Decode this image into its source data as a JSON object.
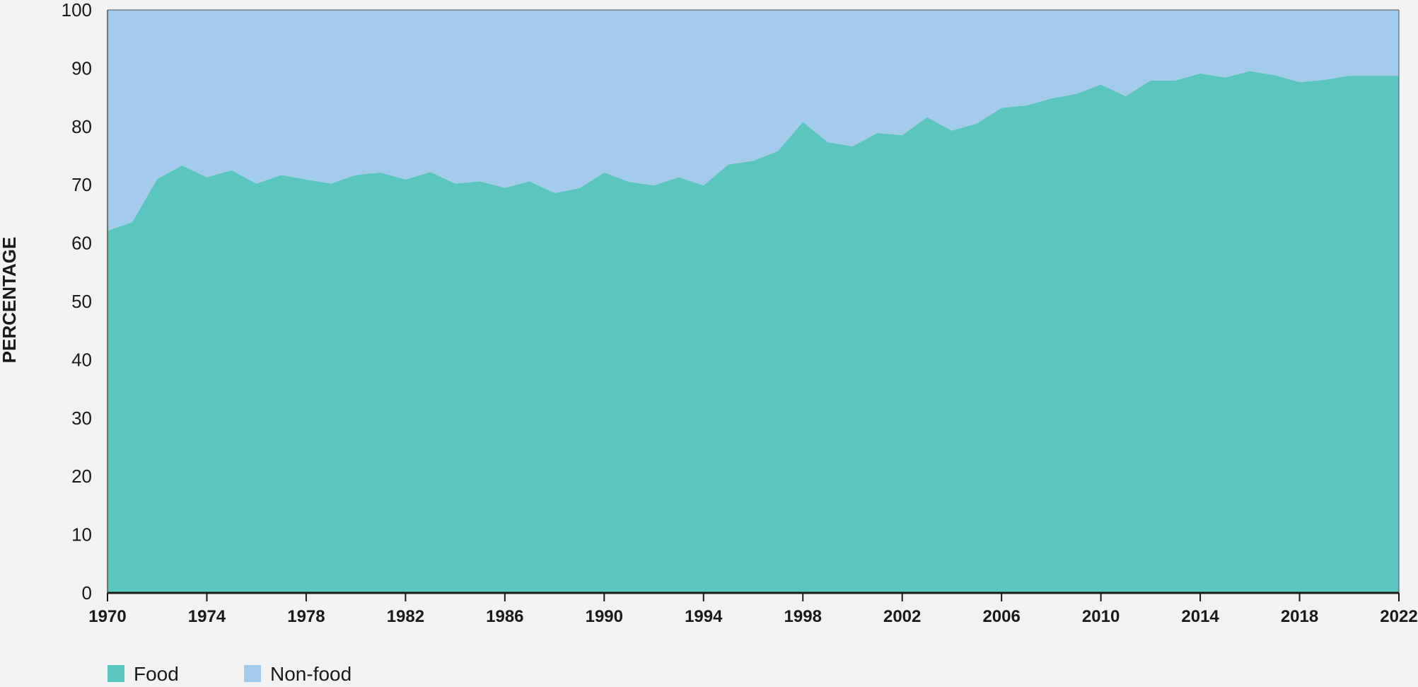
{
  "chart_data": {
    "type": "area",
    "stacked": true,
    "percent_stacked": true,
    "ylabel": "PERCENTAGE",
    "xlabel": "",
    "ylim": [
      0,
      100
    ],
    "yticks": [
      "0",
      "10",
      "20",
      "30",
      "40",
      "50",
      "60",
      "70",
      "80",
      "90",
      "100"
    ],
    "xlim": [
      1970,
      2022
    ],
    "xticks": [
      "1970",
      "1974",
      "1978",
      "1982",
      "1986",
      "1990",
      "1994",
      "1998",
      "2002",
      "2006",
      "2010",
      "2014",
      "2018",
      "2022"
    ],
    "grid": false,
    "legend_position": "bottom-left",
    "x": [
      1970,
      1971,
      1972,
      1973,
      1974,
      1975,
      1976,
      1977,
      1978,
      1979,
      1980,
      1981,
      1982,
      1983,
      1984,
      1985,
      1986,
      1987,
      1988,
      1989,
      1990,
      1991,
      1992,
      1993,
      1994,
      1995,
      1996,
      1997,
      1998,
      1999,
      2000,
      2001,
      2002,
      2003,
      2004,
      2005,
      2006,
      2007,
      2008,
      2009,
      2010,
      2011,
      2012,
      2013,
      2014,
      2015,
      2016,
      2017,
      2018,
      2019,
      2020,
      2021,
      2022
    ],
    "series": [
      {
        "name": "Food",
        "color": "#5bc5bf",
        "values": [
          62.1,
          63.6,
          71.0,
          73.3,
          71.3,
          72.5,
          70.2,
          71.7,
          70.9,
          70.2,
          71.7,
          72.1,
          70.9,
          72.2,
          70.2,
          70.6,
          69.5,
          70.6,
          68.6,
          69.4,
          72.1,
          70.5,
          69.9,
          71.3,
          69.9,
          73.5,
          74.1,
          75.8,
          80.8,
          77.3,
          76.6,
          78.9,
          78.5,
          81.6,
          79.3,
          80.5,
          83.2,
          83.6,
          84.8,
          85.6,
          87.2,
          85.2,
          87.9,
          87.9,
          89.1,
          88.4,
          89.5,
          88.8,
          87.6,
          88.0,
          88.7,
          88.7,
          88.7
        ]
      },
      {
        "name": "Non-food",
        "color": "#a3cbeb",
        "values": [
          37.9,
          36.4,
          29.0,
          26.7,
          28.7,
          27.5,
          29.8,
          28.3,
          29.1,
          29.8,
          28.3,
          27.9,
          29.1,
          27.8,
          29.8,
          29.4,
          30.5,
          29.4,
          31.4,
          30.6,
          27.9,
          29.5,
          30.1,
          28.7,
          30.1,
          26.5,
          25.9,
          24.2,
          19.2,
          22.7,
          23.4,
          21.1,
          21.5,
          18.4,
          20.7,
          19.5,
          16.8,
          16.4,
          15.2,
          14.4,
          12.8,
          14.8,
          12.1,
          12.1,
          10.9,
          11.6,
          10.5,
          11.2,
          12.4,
          12.0,
          11.3,
          11.3,
          11.3
        ]
      }
    ]
  }
}
